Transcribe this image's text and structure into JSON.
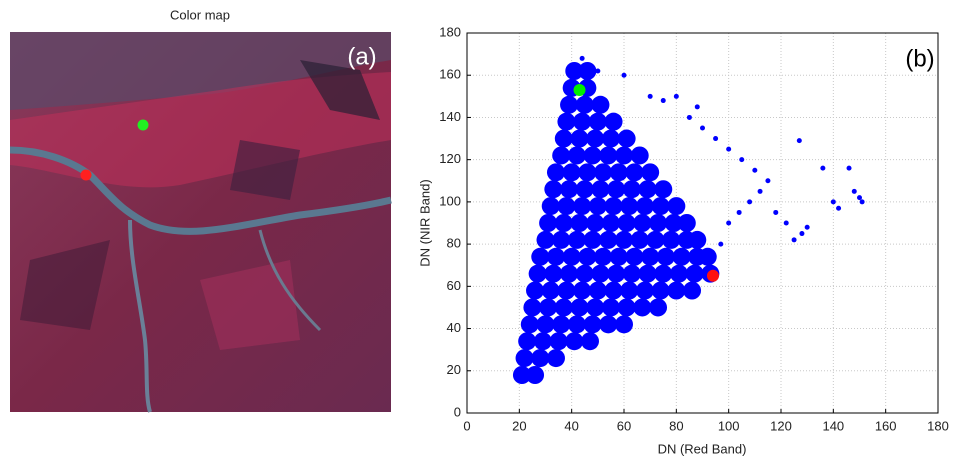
{
  "panel_a": {
    "title": "Color map",
    "label": "(a)"
  },
  "chart_data": {
    "type": "scatter",
    "label": "(b)",
    "xlabel": "DN (Red Band)",
    "ylabel": "DN (NIR Band)",
    "xlim": [
      0,
      180
    ],
    "ylim": [
      0,
      180
    ],
    "xticks": [
      0,
      20,
      40,
      60,
      80,
      100,
      120,
      140,
      160,
      180
    ],
    "yticks": [
      0,
      20,
      40,
      60,
      80,
      100,
      120,
      140,
      160,
      180
    ],
    "grid": true,
    "series": [
      {
        "color": "#0000ff",
        "x": [
          21,
          26,
          22,
          28,
          34,
          23,
          29,
          35,
          41,
          47,
          24,
          30,
          36,
          42,
          48,
          54,
          60,
          25,
          31,
          37,
          43,
          49,
          55,
          61,
          67,
          73,
          26,
          32,
          38,
          44,
          50,
          56,
          62,
          68,
          74,
          80,
          86,
          27,
          33,
          39,
          45,
          51,
          57,
          63,
          69,
          75,
          81,
          87,
          93,
          28,
          34,
          40,
          46,
          52,
          58,
          64,
          70,
          76,
          82,
          88,
          92,
          30,
          36,
          42,
          48,
          54,
          60,
          66,
          72,
          78,
          84,
          88,
          31,
          37,
          43,
          49,
          55,
          61,
          67,
          73,
          79,
          84,
          32,
          38,
          44,
          50,
          56,
          62,
          68,
          74,
          80,
          33,
          39,
          45,
          51,
          57,
          63,
          69,
          75,
          34,
          40,
          46,
          52,
          58,
          64,
          70,
          36,
          42,
          48,
          54,
          60,
          66,
          37,
          43,
          49,
          55,
          61,
          38,
          44,
          50,
          56,
          39,
          45,
          51,
          40,
          46,
          41,
          46
        ],
        "y": [
          18,
          18,
          26,
          26,
          26,
          34,
          34,
          34,
          34,
          34,
          42,
          42,
          42,
          42,
          42,
          42,
          42,
          50,
          50,
          50,
          50,
          50,
          50,
          50,
          50,
          50,
          58,
          58,
          58,
          58,
          58,
          58,
          58,
          58,
          58,
          58,
          58,
          66,
          66,
          66,
          66,
          66,
          66,
          66,
          66,
          66,
          66,
          66,
          66,
          74,
          74,
          74,
          74,
          74,
          74,
          74,
          74,
          74,
          74,
          74,
          74,
          82,
          82,
          82,
          82,
          82,
          82,
          82,
          82,
          82,
          82,
          82,
          90,
          90,
          90,
          90,
          90,
          90,
          90,
          90,
          90,
          90,
          98,
          98,
          98,
          98,
          98,
          98,
          98,
          98,
          98,
          106,
          106,
          106,
          106,
          106,
          106,
          106,
          106,
          114,
          114,
          114,
          114,
          114,
          114,
          114,
          122,
          122,
          122,
          122,
          122,
          122,
          130,
          130,
          130,
          130,
          130,
          138,
          138,
          138,
          138,
          146,
          146,
          146,
          154,
          154,
          162,
          162
        ]
      },
      {
        "color": "#0000ff",
        "x": [
          146,
          136,
          127,
          140,
          148,
          150,
          151,
          142,
          130,
          128,
          125,
          122,
          118,
          115,
          110,
          105,
          100,
          95,
          90,
          85,
          80,
          75,
          70,
          112,
          108,
          104,
          100,
          97,
          88,
          60,
          50,
          44
        ],
        "y": [
          116,
          116,
          129,
          100,
          105,
          102,
          100,
          97,
          88,
          85,
          82,
          90,
          95,
          110,
          115,
          120,
          125,
          130,
          135,
          140,
          150,
          148,
          150,
          105,
          100,
          95,
          90,
          80,
          145,
          160,
          162,
          168
        ]
      },
      {
        "color": "#00ee00",
        "x": [
          43
        ],
        "y": [
          153
        ]
      },
      {
        "color": "#ff1010",
        "x": [
          94
        ],
        "y": [
          65
        ]
      }
    ]
  }
}
